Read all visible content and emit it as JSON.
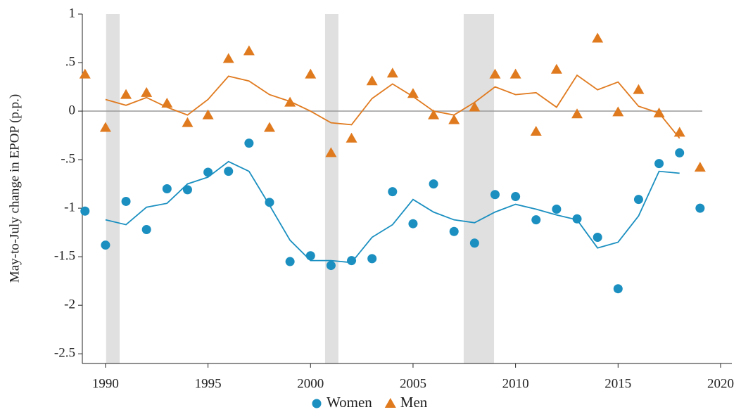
{
  "chart_data": {
    "type": "scatter",
    "y_label": "May-to-July change in EPOP (p.p.)",
    "x": [
      1989,
      1990,
      1991,
      1992,
      1993,
      1994,
      1995,
      1996,
      1997,
      1998,
      1999,
      2000,
      2001,
      2002,
      2003,
      2004,
      2005,
      2006,
      2007,
      2008,
      2009,
      2010,
      2011,
      2012,
      2013,
      2014,
      2015,
      2016,
      2017,
      2018,
      2019
    ],
    "series": [
      {
        "name": "Women",
        "color": "#1a8fc0",
        "marker": "circle",
        "values": [
          -1.03,
          -1.38,
          -0.93,
          -1.22,
          -0.8,
          -0.81,
          -0.63,
          -0.62,
          -0.33,
          -0.94,
          -1.55,
          -1.49,
          -1.59,
          -1.54,
          -1.52,
          -0.83,
          -1.16,
          -0.75,
          -1.24,
          -1.36,
          -0.86,
          -0.88,
          -1.12,
          -1.01,
          -1.11,
          -1.3,
          -1.83,
          -0.91,
          -0.54,
          -0.43,
          -1.0
        ],
        "trend": [
          null,
          -1.12,
          -1.17,
          -0.99,
          -0.95,
          -0.75,
          -0.68,
          -0.52,
          -0.62,
          -0.97,
          -1.33,
          -1.54,
          -1.54,
          -1.56,
          -1.3,
          -1.17,
          -0.91,
          -1.04,
          -1.12,
          -1.15,
          -1.04,
          -0.96,
          -1.01,
          -1.07,
          -1.12,
          -1.41,
          -1.35,
          -1.08,
          -0.62,
          -0.64,
          null
        ]
      },
      {
        "name": "Men",
        "color": "#e07a1f",
        "marker": "triangle",
        "values": [
          0.38,
          -0.17,
          0.17,
          0.19,
          0.08,
          -0.12,
          -0.04,
          0.54,
          0.62,
          -0.17,
          0.09,
          0.38,
          -0.43,
          -0.28,
          0.31,
          0.39,
          0.18,
          -0.04,
          -0.09,
          0.04,
          0.38,
          0.38,
          -0.21,
          0.43,
          -0.03,
          0.75,
          -0.01,
          0.22,
          -0.02,
          -0.22,
          -0.58
        ],
        "trend": [
          null,
          0.12,
          0.06,
          0.14,
          0.04,
          -0.04,
          0.12,
          0.36,
          0.31,
          0.17,
          0.1,
          0,
          -0.12,
          -0.14,
          0.13,
          0.28,
          0.15,
          0,
          -0.04,
          0.09,
          0.25,
          0.17,
          0.19,
          0.04,
          0.37,
          0.22,
          0.3,
          0.05,
          -0.02,
          -0.28,
          null
        ]
      }
    ],
    "recessions": [
      [
        1990.03,
        1990.69
      ],
      [
        2000.71,
        2001.36
      ],
      [
        2007.47,
        2008.95
      ]
    ],
    "xlim": [
      1988.87,
      2020.55
    ],
    "xticks": [
      1990,
      1995,
      2000,
      2005,
      2010,
      2015,
      2020
    ],
    "ylim": [
      -2.6,
      1
    ],
    "yticks": [
      1,
      {
        "value": 0.5,
        "label": ".5"
      },
      0,
      {
        "value": -0.5,
        "label": "-.5"
      },
      -1,
      -1.5,
      -2,
      -2.5
    ],
    "legend": "bottom"
  }
}
